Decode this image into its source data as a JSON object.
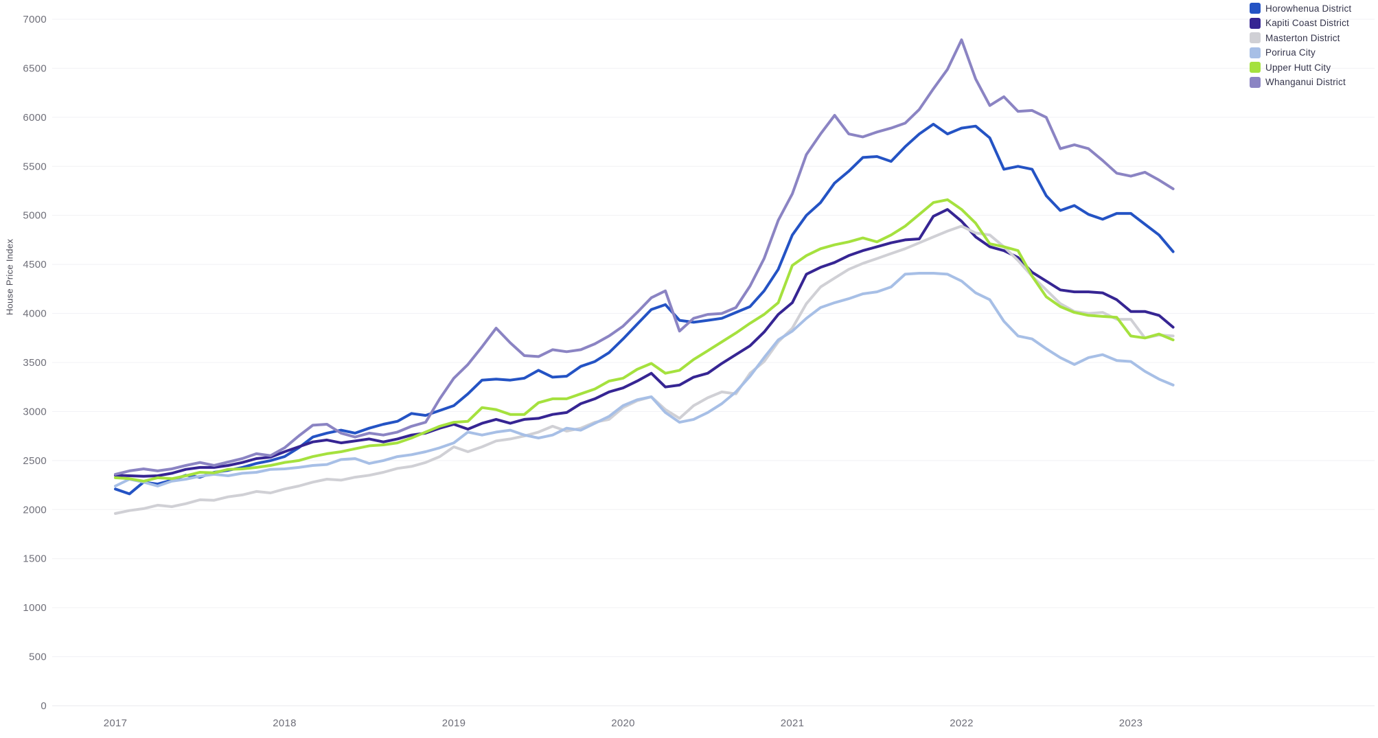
{
  "chart_data": {
    "type": "line",
    "title": "",
    "xlabel": "",
    "ylabel": "House Price Index",
    "ylim": [
      0,
      7000
    ],
    "y_tick_step": 500,
    "y_ticks": [
      0,
      500,
      1000,
      1500,
      2000,
      2500,
      3000,
      3500,
      4000,
      4500,
      5000,
      5500,
      6000,
      6500,
      7000
    ],
    "x_year_ticks": [
      "2017",
      "2018",
      "2019",
      "2020",
      "2021",
      "2022",
      "2023"
    ],
    "grid": "horizontal",
    "legend_position": "top-right",
    "x": [
      "2017-01",
      "2017-02",
      "2017-03",
      "2017-04",
      "2017-05",
      "2017-06",
      "2017-07",
      "2017-08",
      "2017-09",
      "2017-10",
      "2017-11",
      "2017-12",
      "2018-01",
      "2018-02",
      "2018-03",
      "2018-04",
      "2018-05",
      "2018-06",
      "2018-07",
      "2018-08",
      "2018-09",
      "2018-10",
      "2018-11",
      "2018-12",
      "2019-01",
      "2019-02",
      "2019-03",
      "2019-04",
      "2019-05",
      "2019-06",
      "2019-07",
      "2019-08",
      "2019-09",
      "2019-10",
      "2019-11",
      "2019-12",
      "2020-01",
      "2020-02",
      "2020-03",
      "2020-04",
      "2020-05",
      "2020-06",
      "2020-07",
      "2020-08",
      "2020-09",
      "2020-10",
      "2020-11",
      "2020-12",
      "2021-01",
      "2021-02",
      "2021-03",
      "2021-04",
      "2021-05",
      "2021-06",
      "2021-07",
      "2021-08",
      "2021-09",
      "2021-10",
      "2021-11",
      "2021-12",
      "2022-01",
      "2022-02",
      "2022-03",
      "2022-04",
      "2022-05",
      "2022-06",
      "2022-07",
      "2022-08",
      "2022-09",
      "2022-10",
      "2022-11",
      "2022-12",
      "2023-01",
      "2023-02",
      "2023-03",
      "2023-04"
    ],
    "series": [
      {
        "name": "Horowhenua District",
        "color": "#2453c4",
        "values": [
          2210,
          2160,
          2280,
          2260,
          2300,
          2350,
          2330,
          2380,
          2400,
          2430,
          2470,
          2500,
          2540,
          2630,
          2740,
          2780,
          2810,
          2780,
          2830,
          2870,
          2900,
          2980,
          2960,
          3010,
          3060,
          3180,
          3320,
          3330,
          3320,
          3340,
          3420,
          3350,
          3360,
          3460,
          3510,
          3600,
          3740,
          3890,
          4040,
          4090,
          3930,
          3910,
          3930,
          3950,
          4010,
          4070,
          4230,
          4450,
          4800,
          5000,
          5130,
          5330,
          5450,
          5590,
          5600,
          5550,
          5700,
          5830,
          5930,
          5830,
          5890,
          5910,
          5790,
          5470,
          5500,
          5470,
          5200,
          5050,
          5100,
          5010,
          4960,
          5020,
          5020,
          4910,
          4800,
          4630
        ]
      },
      {
        "name": "Kapiti Coast District",
        "color": "#362593",
        "values": [
          2350,
          2345,
          2340,
          2345,
          2370,
          2410,
          2430,
          2430,
          2450,
          2480,
          2520,
          2535,
          2590,
          2640,
          2690,
          2710,
          2680,
          2700,
          2720,
          2690,
          2720,
          2760,
          2780,
          2830,
          2870,
          2820,
          2880,
          2920,
          2880,
          2920,
          2930,
          2970,
          2990,
          3080,
          3130,
          3200,
          3240,
          3310,
          3390,
          3250,
          3270,
          3350,
          3390,
          3490,
          3580,
          3670,
          3810,
          3990,
          4110,
          4400,
          4470,
          4520,
          4590,
          4640,
          4680,
          4720,
          4750,
          4760,
          4990,
          5060,
          4940,
          4780,
          4680,
          4640,
          4570,
          4420,
          4330,
          4240,
          4220,
          4220,
          4210,
          4140,
          4020,
          4020,
          3980,
          3860
        ]
      },
      {
        "name": "Masterton District",
        "color": "#d0d0d5",
        "values": [
          1960,
          1990,
          2010,
          2045,
          2030,
          2060,
          2100,
          2095,
          2130,
          2150,
          2185,
          2170,
          2210,
          2240,
          2280,
          2310,
          2300,
          2330,
          2350,
          2380,
          2420,
          2440,
          2480,
          2540,
          2640,
          2590,
          2640,
          2700,
          2720,
          2750,
          2790,
          2850,
          2800,
          2830,
          2890,
          2920,
          3040,
          3110,
          3150,
          3020,
          2930,
          3060,
          3140,
          3200,
          3180,
          3390,
          3510,
          3710,
          3850,
          4100,
          4270,
          4360,
          4450,
          4510,
          4560,
          4610,
          4660,
          4720,
          4780,
          4840,
          4890,
          4820,
          4800,
          4680,
          4540,
          4380,
          4240,
          4100,
          4020,
          4000,
          4010,
          3940,
          3940,
          3750,
          3780,
          3770
        ]
      },
      {
        "name": "Porirua City",
        "color": "#a7bfe6",
        "values": [
          2240,
          2310,
          2280,
          2240,
          2290,
          2310,
          2340,
          2360,
          2345,
          2370,
          2380,
          2410,
          2415,
          2430,
          2450,
          2460,
          2510,
          2520,
          2470,
          2500,
          2540,
          2560,
          2590,
          2630,
          2680,
          2790,
          2760,
          2790,
          2810,
          2760,
          2730,
          2760,
          2830,
          2810,
          2880,
          2950,
          3060,
          3120,
          3150,
          2990,
          2890,
          2920,
          2990,
          3080,
          3200,
          3360,
          3550,
          3730,
          3820,
          3950,
          4060,
          4110,
          4150,
          4200,
          4220,
          4270,
          4400,
          4410,
          4410,
          4400,
          4330,
          4210,
          4140,
          3920,
          3770,
          3740,
          3640,
          3550,
          3480,
          3550,
          3580,
          3520,
          3510,
          3410,
          3330,
          3270
        ]
      },
      {
        "name": "Upper Hutt City",
        "color": "#a5e13e",
        "values": [
          2325,
          2315,
          2290,
          2325,
          2315,
          2345,
          2380,
          2375,
          2410,
          2415,
          2430,
          2450,
          2480,
          2500,
          2540,
          2570,
          2590,
          2620,
          2650,
          2660,
          2680,
          2730,
          2790,
          2850,
          2890,
          2900,
          3040,
          3020,
          2970,
          2970,
          3090,
          3130,
          3130,
          3180,
          3230,
          3310,
          3340,
          3430,
          3490,
          3390,
          3420,
          3530,
          3620,
          3710,
          3800,
          3900,
          3990,
          4110,
          4490,
          4590,
          4660,
          4700,
          4730,
          4770,
          4730,
          4800,
          4890,
          5010,
          5130,
          5160,
          5060,
          4920,
          4710,
          4680,
          4640,
          4380,
          4170,
          4070,
          4010,
          3980,
          3970,
          3960,
          3770,
          3750,
          3790,
          3730
        ]
      },
      {
        "name": "Whanganui District",
        "color": "#8b84c3",
        "values": [
          2360,
          2395,
          2415,
          2395,
          2415,
          2450,
          2480,
          2450,
          2485,
          2520,
          2570,
          2550,
          2630,
          2750,
          2860,
          2870,
          2780,
          2740,
          2780,
          2760,
          2790,
          2850,
          2890,
          3130,
          3340,
          3480,
          3660,
          3850,
          3700,
          3570,
          3560,
          3630,
          3610,
          3630,
          3690,
          3770,
          3870,
          4010,
          4160,
          4230,
          3820,
          3950,
          3990,
          4000,
          4060,
          4280,
          4560,
          4950,
          5220,
          5620,
          5830,
          6020,
          5830,
          5800,
          5850,
          5890,
          5940,
          6080,
          6290,
          6490,
          6790,
          6390,
          6120,
          6210,
          6060,
          6070,
          6000,
          5680,
          5720,
          5680,
          5560,
          5430,
          5400,
          5440,
          5360,
          5270
        ]
      }
    ]
  },
  "legend": {
    "items": [
      {
        "label": "Horowhenua District"
      },
      {
        "label": "Kapiti Coast District"
      },
      {
        "label": "Masterton District"
      },
      {
        "label": "Porirua City"
      },
      {
        "label": "Upper Hutt City"
      },
      {
        "label": "Whanganui District"
      }
    ]
  }
}
